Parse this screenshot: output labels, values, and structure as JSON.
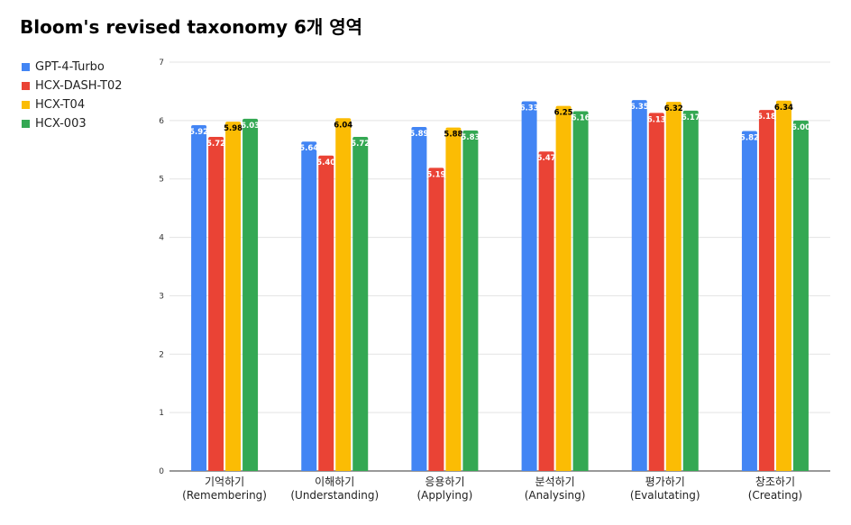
{
  "chart_data": {
    "type": "bar",
    "title": "Bloom's revised taxonomy 6개 영역",
    "categories": [
      [
        "기억하기",
        "(Remembering)"
      ],
      [
        "이해하기",
        "(Understanding)"
      ],
      [
        "응용하기",
        "(Applying)"
      ],
      [
        "분석하기",
        "(Analysing)"
      ],
      [
        "평가하기",
        "(Evalutating)"
      ],
      [
        "창조하기",
        "(Creating)"
      ]
    ],
    "series": [
      {
        "name": "GPT-4-Turbo",
        "color": "#4285f4",
        "labelColor": "#ffffff",
        "values": [
          5.92,
          5.64,
          5.89,
          6.33,
          6.35,
          5.82
        ],
        "labels": [
          "5.92",
          "5.64",
          "5.89",
          "6.33",
          "6.35",
          "5.82"
        ]
      },
      {
        "name": "HCX-DASH-T02",
        "color": "#ea4335",
        "labelColor": "#ffffff",
        "values": [
          5.72,
          5.4,
          5.19,
          5.47,
          6.13,
          6.18
        ],
        "labels": [
          "5.72",
          "5.40",
          "5.19",
          "5.47",
          "6.13",
          "6.18"
        ]
      },
      {
        "name": "HCX-T04",
        "color": "#fbbc04",
        "labelColor": "#000000",
        "values": [
          5.98,
          6.04,
          5.88,
          6.25,
          6.32,
          6.34
        ],
        "labels": [
          "5.98",
          "6.04",
          "5.88",
          "6.25",
          "6.32",
          "6.34"
        ]
      },
      {
        "name": "HCX-003",
        "color": "#34a853",
        "labelColor": "#ffffff",
        "values": [
          6.03,
          5.72,
          5.83,
          6.16,
          6.17,
          6.0
        ],
        "labels": [
          "6.03",
          "5.72",
          "5.83",
          "6.16",
          "6.17",
          "6.00"
        ]
      }
    ],
    "yticks": [
      "0",
      "1",
      "2",
      "3",
      "4",
      "5",
      "6",
      "7"
    ],
    "ylim": [
      0,
      7
    ],
    "grid": true,
    "legend": "top-left"
  }
}
